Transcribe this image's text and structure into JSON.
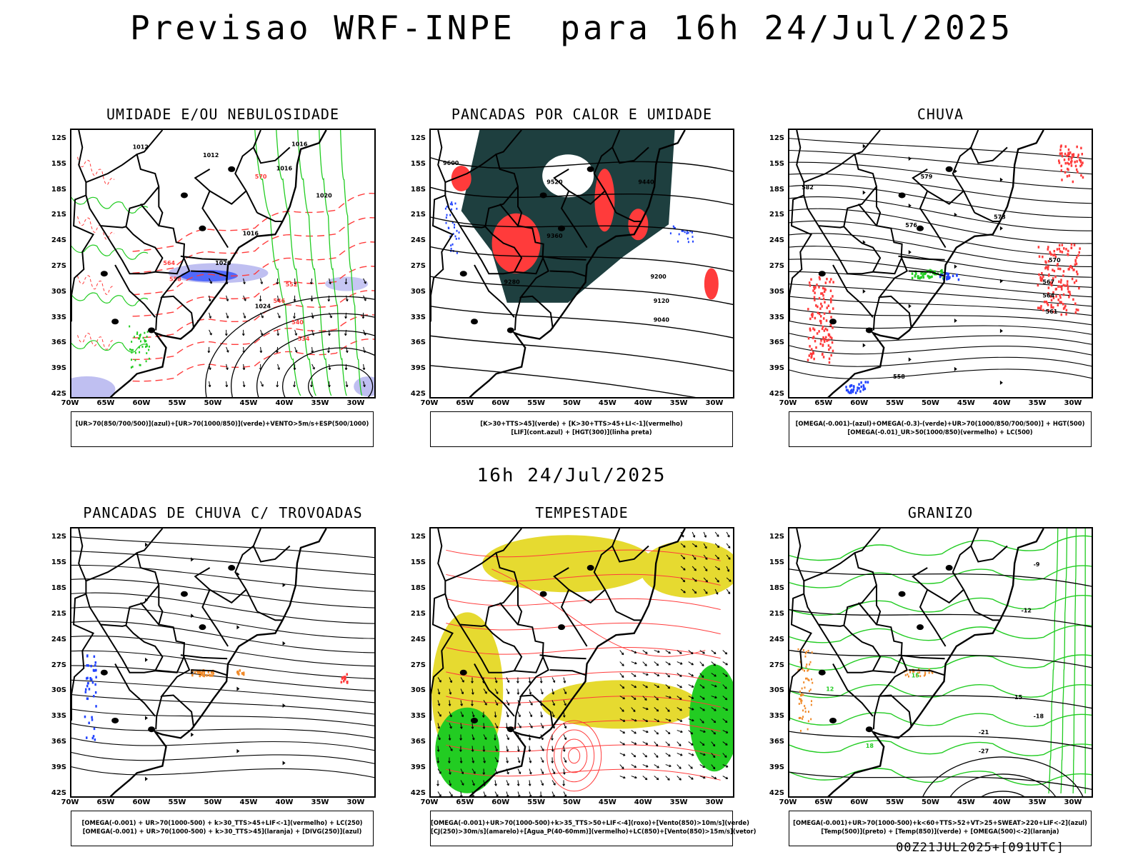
{
  "title": "Previsao WRF-INPE  para 16h 24/Jul/2025",
  "mid_title": "16h 24/Jul/2025",
  "footer": "00Z21JUL2025+[091UTC]",
  "axes": {
    "lat_labels": [
      "12S",
      "15S",
      "18S",
      "21S",
      "24S",
      "27S",
      "30S",
      "33S",
      "36S",
      "39S",
      "42S"
    ],
    "lon_labels": [
      "70W",
      "65W",
      "60W",
      "55W",
      "50W",
      "45W",
      "40W",
      "35W",
      "30W"
    ]
  },
  "panels": [
    {
      "title": "UMIDADE E/OU NEBULOSIDADE",
      "legend": [
        "[UR>70(850/700/500)](azul)+[UR>70(1000/850)](verde)+VENTO>5m/s+ESP(500/1000)"
      ],
      "contour_labels": [
        "1012",
        "1012",
        "1016",
        "1016",
        "1016",
        "1020",
        "1020",
        "1024",
        "570",
        "564",
        "558",
        "552",
        "546",
        "540",
        "534"
      ]
    },
    {
      "title": "PANCADAS POR CALOR E UMIDADE",
      "legend": [
        "[K>30+TTS>45](verde) + [K>30+TTS>45+LI<-1](vermelho)",
        "[LIF](cont.azul) + [HGT(300)](linha preta)"
      ],
      "contour_labels": [
        "9600",
        "9520",
        "9440",
        "9360",
        "9280",
        "9200",
        "9120",
        "9040"
      ]
    },
    {
      "title": "CHUVA",
      "legend": [
        "[OMEGA(-0.001)-(azul)+OMEGA(-0.3)-(verde)+UR>70(1000/850/700/500)] + HGT(500)",
        "[OMEGA(-0.01)_UR>50(1000/850)(vermelho) + LC(500)"
      ],
      "contour_labels": [
        "582",
        "579",
        "576",
        "573",
        "570",
        "567",
        "564",
        "561",
        "558"
      ]
    },
    {
      "title": "PANCADAS DE CHUVA C/ TROVOADAS",
      "legend": [
        "[OMEGA(-0.001) + UR>70(1000-500) + k>30_TTS>45+LIF<-1](vermelho) + LC(250)",
        "[OMEGA(-0.001) + UR>70(1000-500) + k>30_TTS>45](laranja) + [DIVG(250)](azul)"
      ],
      "contour_labels": []
    },
    {
      "title": "TEMPESTADE",
      "legend": [
        "[OMEGA(-0.001)+UR>70(1000-500)+k>35_TTS>50+LIF<-4](roxo)+[Vento(850)>10m/s](verde)",
        "[CJ(250)>30m/s](amarelo)+[Agua_P(40-60mm)](vermelho)+LC(850)+[Vento(850)>15m/s](vetor)"
      ],
      "contour_labels": []
    },
    {
      "title": "GRANIZO",
      "legend": [
        "[OMEGA(-0.001)+UR>70(1000-500)+k<60+TTS>52+VT>25+SWEAT>220+LIF<-2](azul)",
        "[Temp(500)](preto) + [Temp(850)](verde) + [OMEGA(500)<-2](laranja)"
      ],
      "contour_labels": [
        "-9",
        "-12",
        "-15",
        "-18",
        "-21",
        "-27",
        "12",
        "15",
        "18"
      ]
    }
  ],
  "colors": {
    "contour": "#000000",
    "red": "#ff3b3b",
    "green": "#22cc22",
    "blue": "#2244ff",
    "light_blue": "#b8b8f0",
    "dark_teal": "#1e3f3f",
    "yellow": "#e6da30",
    "orange": "#f08a2a"
  }
}
